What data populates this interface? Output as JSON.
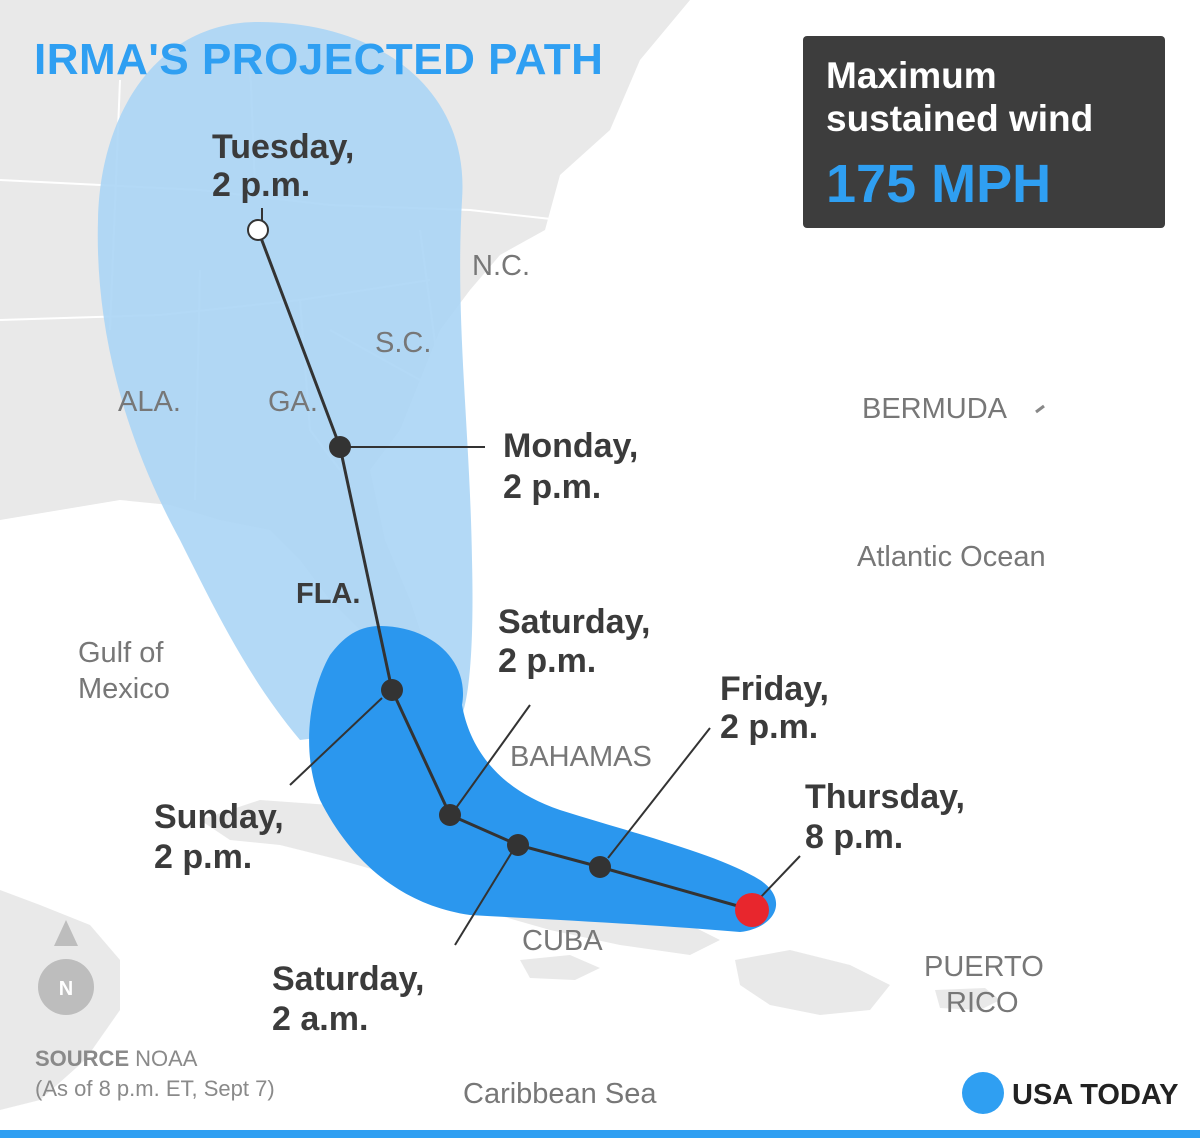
{
  "title": "IRMA'S PROJECTED PATH",
  "wind_box": {
    "line1": "Maximum",
    "line2": "sustained wind",
    "value": "175 MPH"
  },
  "track_points": [
    {
      "id": "thursday-8pm",
      "line1": "Thursday,",
      "line2": "8 p.m.",
      "status": "current"
    },
    {
      "id": "friday-2pm",
      "line1": "Friday,",
      "line2": "2 p.m.",
      "status": "forecast"
    },
    {
      "id": "saturday-2am",
      "line1": "Saturday,",
      "line2": "2 a.m.",
      "status": "forecast"
    },
    {
      "id": "saturday-2pm",
      "line1": "Saturday,",
      "line2": "2 p.m.",
      "status": "forecast"
    },
    {
      "id": "sunday-2pm",
      "line1": "Sunday,",
      "line2": "2 p.m.",
      "status": "forecast"
    },
    {
      "id": "monday-2pm",
      "line1": "Monday,",
      "line2": "2 p.m.",
      "status": "forecast"
    },
    {
      "id": "tuesday-2pm",
      "line1": "Tuesday,",
      "line2": "2 p.m.",
      "status": "final"
    }
  ],
  "places": {
    "nc": "N.C.",
    "sc": "S.C.",
    "ala": "ALA.",
    "ga": "GA.",
    "fla": "FLA.",
    "bermuda": "BERMUDA",
    "atlantic": "Atlantic Ocean",
    "gulf_line1": "Gulf of",
    "gulf_line2": "Mexico",
    "bahamas": "BAHAMAS",
    "cuba": "CUBA",
    "pr_line1": "PUERTO",
    "pr_line2": "RICO",
    "caribbean": "Caribbean Sea"
  },
  "north_arrow": "N",
  "source": {
    "label": "SOURCE",
    "name": "NOAA",
    "note": "(As of 8 p.m. ET, Sept 7)"
  },
  "logo": "USA TODAY",
  "colors": {
    "accent": "#2f9ff2",
    "cone_outer": "#a9d4f5",
    "cone_inner": "#2b97ee",
    "current_position": "#e8262d",
    "box_bg": "#3d3d3d"
  }
}
